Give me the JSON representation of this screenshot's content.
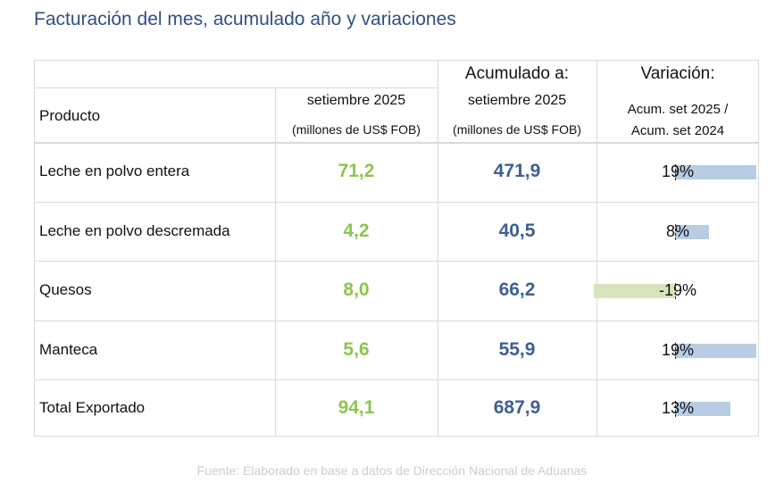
{
  "title": "Facturación del mes, acumulado año y variaciones",
  "header": {
    "product": "Producto",
    "month": "setiembre 2025",
    "month_unit": "(millones de US$ FOB)",
    "acum_title": "Acumulado a:",
    "acum": "setiembre 2025",
    "acum_unit": "(millones de US$ FOB)",
    "var_title": "Variación:",
    "var_line1": "Acum. set 2025 /",
    "var_line2": "Acum. set 2024"
  },
  "rows": [
    {
      "product": "Leche en polvo entera",
      "month": "71,2",
      "acum": "471,9",
      "var": "19%",
      "var_value": 19
    },
    {
      "product": "Leche en polvo descremada",
      "month": "4,2",
      "acum": "40,5",
      "var": "8%",
      "var_value": 8
    },
    {
      "product": "Quesos",
      "month": "8,0",
      "acum": "66,2",
      "var": "-19%",
      "var_value": -19
    },
    {
      "product": "Manteca",
      "month": "5,6",
      "acum": "55,9",
      "var": "19%",
      "var_value": 19
    },
    {
      "product": "Total Exportado",
      "month": "94,1",
      "acum": "687,9",
      "var": "13%",
      "var_value": 13
    }
  ],
  "colors": {
    "positive": "#b8cce4",
    "negative": "#d8e4bc"
  },
  "source": "Fuente: Elaborado en base a datos de Dirección Nacional de Aduanas"
}
